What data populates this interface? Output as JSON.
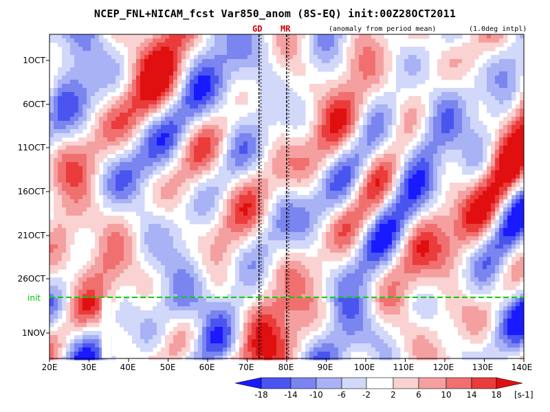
{
  "chart_data": {
    "type": "heatmap",
    "title": "NCEP_FNL+NICAM_fcst Var850_anom (8S-EQ) init:00Z28OCT2011",
    "note_left": "(anomaly from period mean)",
    "note_right": "(1.0deg intpl)",
    "markers": [
      {
        "label": "GD",
        "lon": 73
      },
      {
        "label": "MR",
        "lon": 80
      }
    ],
    "x_ticks": [
      "20E",
      "30E",
      "40E",
      "50E",
      "60E",
      "70E",
      "80E",
      "90E",
      "100E",
      "110E",
      "120E",
      "130E",
      "140E"
    ],
    "xlim": [
      20,
      140
    ],
    "y_ticks": [
      "1OCT",
      "6OCT",
      "11OCT",
      "16OCT",
      "21OCT",
      "26OCT",
      "1NOV"
    ],
    "init_label": "init",
    "colorbar": {
      "ticks": [
        "-18",
        "-14",
        "-10",
        "-6",
        "-2",
        "2",
        "6",
        "10",
        "14",
        "18"
      ],
      "unit": "[s-1]",
      "colors": [
        "#1a1aff",
        "#4a55f0",
        "#7a85f0",
        "#a8b2f5",
        "#d2d8fa",
        "#ffffff",
        "#fad2d2",
        "#f5a0a0",
        "#f07070",
        "#eb3c3c",
        "#e01010"
      ]
    }
  }
}
